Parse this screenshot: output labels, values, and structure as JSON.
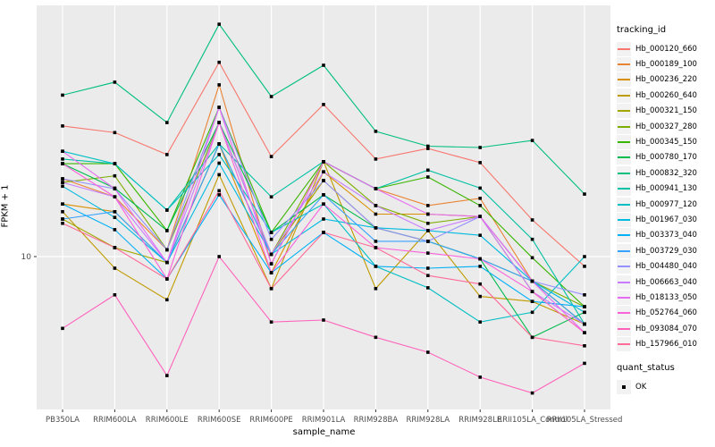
{
  "chart_data": {
    "type": "line",
    "title": "",
    "xlabel": "sample_name",
    "ylabel": "FPKM + 1",
    "y_scale": "log10",
    "y_ticks": [
      10
    ],
    "ylim_approx": [
      2.7,
      85
    ],
    "grid": "ggplot-white-on-grey",
    "panel_bg": "#EBEBEB",
    "grid_color": "#FFFFFF",
    "tick_label_color": "#4D4D4D",
    "point_shape": "square",
    "point_color": "#000000",
    "legend": {
      "color_title": "tracking_id",
      "shape_title": "quant_status",
      "shape_items": [
        {
          "label": "OK"
        }
      ],
      "position": "right"
    },
    "categories": [
      "PB350LA",
      "RRIM600LA",
      "RRIM600LE",
      "RRIM600SE",
      "RRIM600PE",
      "RRIM901LA",
      "RRIM928BA",
      "RRIM928LA",
      "RRIM928LE",
      "RRII105LA_Control",
      "RRII105LA_Stressed"
    ],
    "series": [
      {
        "name": "Hb_000120_660",
        "color": "#F8766D",
        "values": [
          30.7,
          29.0,
          24.0,
          53.0,
          23.6,
          36.9,
          23.1,
          25.3,
          22.4,
          13.7,
          9.2
        ]
      },
      {
        "name": "Hb_000189_100",
        "color": "#EA8331",
        "values": [
          19.5,
          16.7,
          10.6,
          43.7,
          9.4,
          22.6,
          17.9,
          15.5,
          16.5,
          8.1,
          5.6
        ]
      },
      {
        "name": "Hb_000236_220",
        "color": "#D89000",
        "values": [
          15.7,
          14.7,
          9.5,
          26.3,
          8.7,
          20.7,
          14.4,
          14.4,
          14.1,
          7.4,
          5.2
        ]
      },
      {
        "name": "Hb_000260_640",
        "color": "#C09B00",
        "values": [
          14.7,
          9.05,
          6.9,
          20.2,
          7.6,
          22.6,
          7.6,
          12.5,
          7.1,
          6.8,
          5.6
        ]
      },
      {
        "name": "Hb_000321_150",
        "color": "#A3A500",
        "values": [
          13.8,
          10.8,
          9.5,
          26.3,
          10.2,
          19.2,
          12.8,
          11.4,
          9.8,
          8.1,
          5.6
        ]
      },
      {
        "name": "Hb_000327_280",
        "color": "#7CAE00",
        "values": [
          18.9,
          20.0,
          10.6,
          31.6,
          10.2,
          22.6,
          15.5,
          13.3,
          14.1,
          8.1,
          6.5
        ]
      },
      {
        "name": "Hb_000345_150",
        "color": "#39B600",
        "values": [
          22.2,
          22.2,
          12.5,
          36.0,
          12.3,
          22.6,
          17.9,
          19.8,
          15.5,
          9.9,
          6.5
        ]
      },
      {
        "name": "Hb_000780_170",
        "color": "#00BB4E",
        "values": [
          22.2,
          18.0,
          12.5,
          31.6,
          12.3,
          17.0,
          12.8,
          11.4,
          9.8,
          5.0,
          6.2
        ]
      },
      {
        "name": "Hb_000832_320",
        "color": "#00BF7D",
        "values": [
          40.0,
          44.7,
          31.6,
          73.5,
          39.5,
          51.7,
          29.3,
          25.8,
          25.5,
          27.1,
          17.1
        ]
      },
      {
        "name": "Hb_000941_130",
        "color": "#00C1A3",
        "values": [
          23.1,
          22.2,
          14.9,
          26.3,
          16.7,
          22.6,
          17.9,
          21.0,
          18.0,
          11.6,
          5.6
        ]
      },
      {
        "name": "Hb_000977_120",
        "color": "#00BFC4",
        "values": [
          24.7,
          22.2,
          14.9,
          24.0,
          12.3,
          15.7,
          9.2,
          7.65,
          5.7,
          6.2,
          10.0
        ]
      },
      {
        "name": "Hb_001967_030",
        "color": "#00BAE0",
        "values": [
          18.3,
          14.0,
          9.5,
          22.3,
          10.2,
          13.8,
          12.8,
          12.5,
          12.0,
          8.1,
          6.2
        ]
      },
      {
        "name": "Hb_003373_040",
        "color": "#00B0F6",
        "values": [
          15.7,
          12.6,
          8.25,
          17.0,
          8.7,
          12.3,
          9.2,
          9.05,
          9.2,
          6.8,
          6.5
        ]
      },
      {
        "name": "Hb_003729_030",
        "color": "#35A2FF",
        "values": [
          13.8,
          14.7,
          9.5,
          26.3,
          10.2,
          17.0,
          11.4,
          11.4,
          9.8,
          8.1,
          5.6
        ]
      },
      {
        "name": "Hb_004480_040",
        "color": "#9590FF",
        "values": [
          19.5,
          17.9,
          10.6,
          36.0,
          11.6,
          19.2,
          12.8,
          11.4,
          14.1,
          8.1,
          7.2
        ]
      },
      {
        "name": "Hb_006663_040",
        "color": "#C77CFF",
        "values": [
          18.9,
          16.7,
          9.5,
          31.6,
          10.2,
          20.7,
          15.5,
          12.5,
          14.1,
          7.4,
          5.6
        ]
      },
      {
        "name": "Hb_018133_050",
        "color": "#E76BF3",
        "values": [
          24.7,
          17.9,
          9.5,
          36.0,
          9.4,
          22.6,
          17.9,
          14.4,
          14.1,
          8.1,
          5.2
        ]
      },
      {
        "name": "Hb_052764_060",
        "color": "#FA62DB",
        "values": [
          22.2,
          16.7,
          8.25,
          31.6,
          8.7,
          15.7,
          10.8,
          10.3,
          9.8,
          7.4,
          5.2
        ]
      },
      {
        "name": "Hb_093084_070",
        "color": "#FF62BC",
        "values": [
          5.4,
          7.2,
          3.6,
          10.0,
          5.7,
          5.8,
          5.0,
          4.4,
          3.55,
          3.1,
          4.0
        ]
      },
      {
        "name": "Hb_157966_010",
        "color": "#FF6A98",
        "values": [
          13.3,
          10.8,
          8.25,
          17.6,
          7.6,
          12.3,
          10.8,
          8.5,
          7.9,
          5.0,
          4.65
        ]
      }
    ]
  }
}
